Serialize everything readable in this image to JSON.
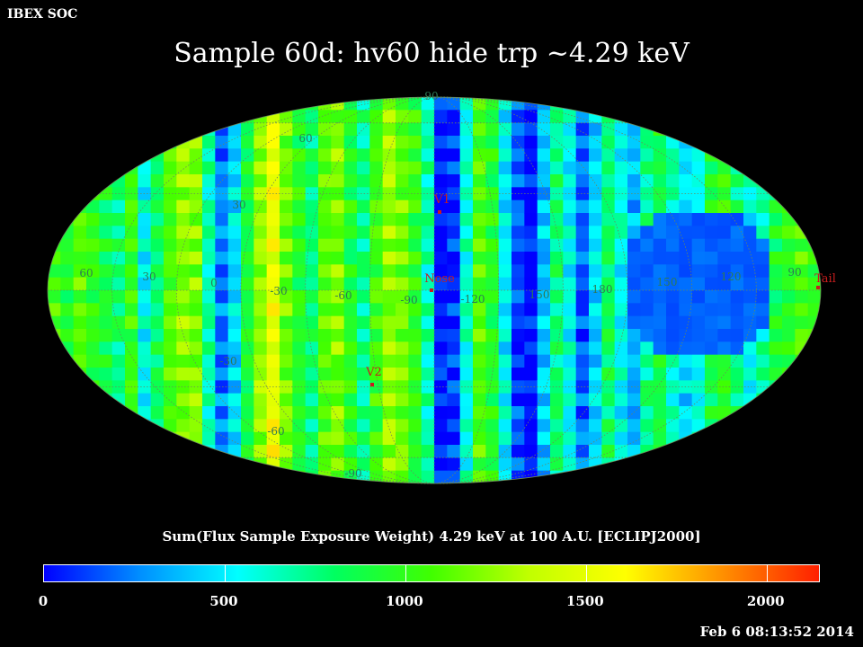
{
  "header": {
    "org": "IBEX SOC",
    "title": "Sample 60d: hv60 hide trp ~4.29 keV"
  },
  "map": {
    "projection": "mollweide",
    "grid_labels": {
      "latitude": [
        "90",
        "60",
        "30",
        "-30",
        "-60",
        "-90"
      ],
      "longitude": [
        "60",
        "30",
        "0",
        "-30",
        "-60",
        "-90",
        "-120",
        "150",
        "180",
        "150",
        "120",
        "90"
      ]
    },
    "markers": [
      {
        "name": "V1",
        "color": "#c81e1e"
      },
      {
        "name": "Nose",
        "color": "#c81e1e"
      },
      {
        "name": "V2",
        "color": "#c81e1e"
      },
      {
        "name": "Tail",
        "color": "#c81e1e"
      }
    ],
    "colors": {
      "grid": "#6a8a5a",
      "label": "#2e7a55",
      "marker": "#c81e1e"
    }
  },
  "colorbar": {
    "title": "Sum(Flux Sample Exposure Weight)  4.29 keV at 100 A.U. [ECLIPJ2000]",
    "min": 0,
    "max": 2150,
    "tick_labels": [
      "0",
      "500",
      "1000",
      "1500",
      "2000"
    ],
    "tick_values": [
      0,
      500,
      1000,
      1500,
      2000
    ],
    "stops": [
      "#0000ff",
      "#0090ff",
      "#00ffff",
      "#00ff60",
      "#40ff00",
      "#c0ff00",
      "#ffff00",
      "#ff9000",
      "#ff2000"
    ]
  },
  "footer": {
    "timestamp": "Feb  6 08:13:52 2014"
  }
}
